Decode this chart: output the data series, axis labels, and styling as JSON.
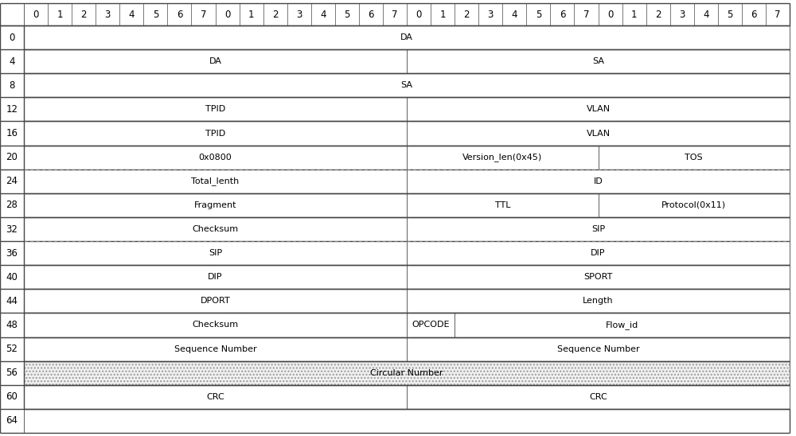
{
  "figsize": [
    10.0,
    5.48
  ],
  "dpi": 100,
  "background_color": "#ffffff",
  "bit_header": [
    0,
    1,
    2,
    3,
    4,
    5,
    6,
    7,
    0,
    1,
    2,
    3,
    4,
    5,
    6,
    7,
    0,
    1,
    2,
    3,
    4,
    5,
    6,
    7,
    0,
    1,
    2,
    3,
    4,
    5,
    6,
    7
  ],
  "total_bits": 32,
  "rows": [
    {
      "byte": 0,
      "cells": [
        {
          "label": "DA",
          "start": 0,
          "end": 32,
          "style": "normal"
        }
      ]
    },
    {
      "byte": 4,
      "cells": [
        {
          "label": "DA",
          "start": 0,
          "end": 16,
          "style": "normal"
        },
        {
          "label": "SA",
          "start": 16,
          "end": 32,
          "style": "normal"
        }
      ]
    },
    {
      "byte": 8,
      "cells": [
        {
          "label": "SA",
          "start": 0,
          "end": 32,
          "style": "normal"
        }
      ]
    },
    {
      "byte": 12,
      "cells": [
        {
          "label": "TPID",
          "start": 0,
          "end": 16,
          "style": "normal"
        },
        {
          "label": "VLAN",
          "start": 16,
          "end": 32,
          "style": "normal"
        }
      ]
    },
    {
      "byte": 16,
      "cells": [
        {
          "label": "TPID",
          "start": 0,
          "end": 16,
          "style": "normal"
        },
        {
          "label": "VLAN",
          "start": 16,
          "end": 32,
          "style": "normal"
        }
      ]
    },
    {
      "byte": 20,
      "cells": [
        {
          "label": "0x0800",
          "start": 0,
          "end": 16,
          "style": "normal"
        },
        {
          "label": "Version_len(0x45)",
          "start": 16,
          "end": 24,
          "style": "normal"
        },
        {
          "label": "TOS",
          "start": 24,
          "end": 32,
          "style": "normal"
        }
      ]
    },
    {
      "byte": 24,
      "cells": [
        {
          "label": "Total_lenth",
          "start": 0,
          "end": 16,
          "style": "dashed_top"
        },
        {
          "label": "ID",
          "start": 16,
          "end": 32,
          "style": "dashed_top"
        }
      ]
    },
    {
      "byte": 28,
      "cells": [
        {
          "label": "Fragment",
          "start": 0,
          "end": 16,
          "style": "normal"
        },
        {
          "label": "TTL",
          "start": 16,
          "end": 24,
          "style": "normal"
        },
        {
          "label": "Protocol(0x11)",
          "start": 24,
          "end": 32,
          "style": "normal"
        }
      ]
    },
    {
      "byte": 32,
      "cells": [
        {
          "label": "Checksum",
          "start": 0,
          "end": 16,
          "style": "normal"
        },
        {
          "label": "SIP",
          "start": 16,
          "end": 32,
          "style": "normal"
        }
      ]
    },
    {
      "byte": 36,
      "cells": [
        {
          "label": "SIP",
          "start": 0,
          "end": 16,
          "style": "dashed_top"
        },
        {
          "label": "DIP",
          "start": 16,
          "end": 32,
          "style": "dashed_top"
        }
      ]
    },
    {
      "byte": 40,
      "cells": [
        {
          "label": "DIP",
          "start": 0,
          "end": 16,
          "style": "normal"
        },
        {
          "label": "SPORT",
          "start": 16,
          "end": 32,
          "style": "normal"
        }
      ]
    },
    {
      "byte": 44,
      "cells": [
        {
          "label": "DPORT",
          "start": 0,
          "end": 16,
          "style": "normal"
        },
        {
          "label": "Length",
          "start": 16,
          "end": 32,
          "style": "normal"
        }
      ]
    },
    {
      "byte": 48,
      "cells": [
        {
          "label": "Checksum",
          "start": 0,
          "end": 16,
          "style": "normal"
        },
        {
          "label": "OPCODE",
          "start": 16,
          "end": 18,
          "style": "normal"
        },
        {
          "label": "Flow_id",
          "start": 18,
          "end": 32,
          "style": "normal"
        }
      ]
    },
    {
      "byte": 52,
      "cells": [
        {
          "label": "Sequence Number",
          "start": 0,
          "end": 16,
          "style": "normal"
        },
        {
          "label": "Sequence Number",
          "start": 16,
          "end": 32,
          "style": "normal"
        }
      ]
    },
    {
      "byte": 56,
      "cells": [
        {
          "label": "Circular Number",
          "start": 0,
          "end": 32,
          "style": "dotted"
        }
      ]
    },
    {
      "byte": 60,
      "cells": [
        {
          "label": "CRC",
          "start": 0,
          "end": 16,
          "style": "normal"
        },
        {
          "label": "CRC",
          "start": 16,
          "end": 32,
          "style": "normal"
        }
      ]
    },
    {
      "byte": 64,
      "cells": []
    }
  ],
  "border_color": "#444444",
  "dashed_color": "#888888",
  "dotted_fill_color": "#f0f0f0",
  "text_color": "#000000",
  "cell_bg": "#ffffff",
  "font_size": 8.0,
  "header_font_size": 8.5,
  "row_label_font_size": 8.5,
  "lw_outer": 1.0,
  "lw_inner": 0.6,
  "lw_header_divider": 0.5
}
